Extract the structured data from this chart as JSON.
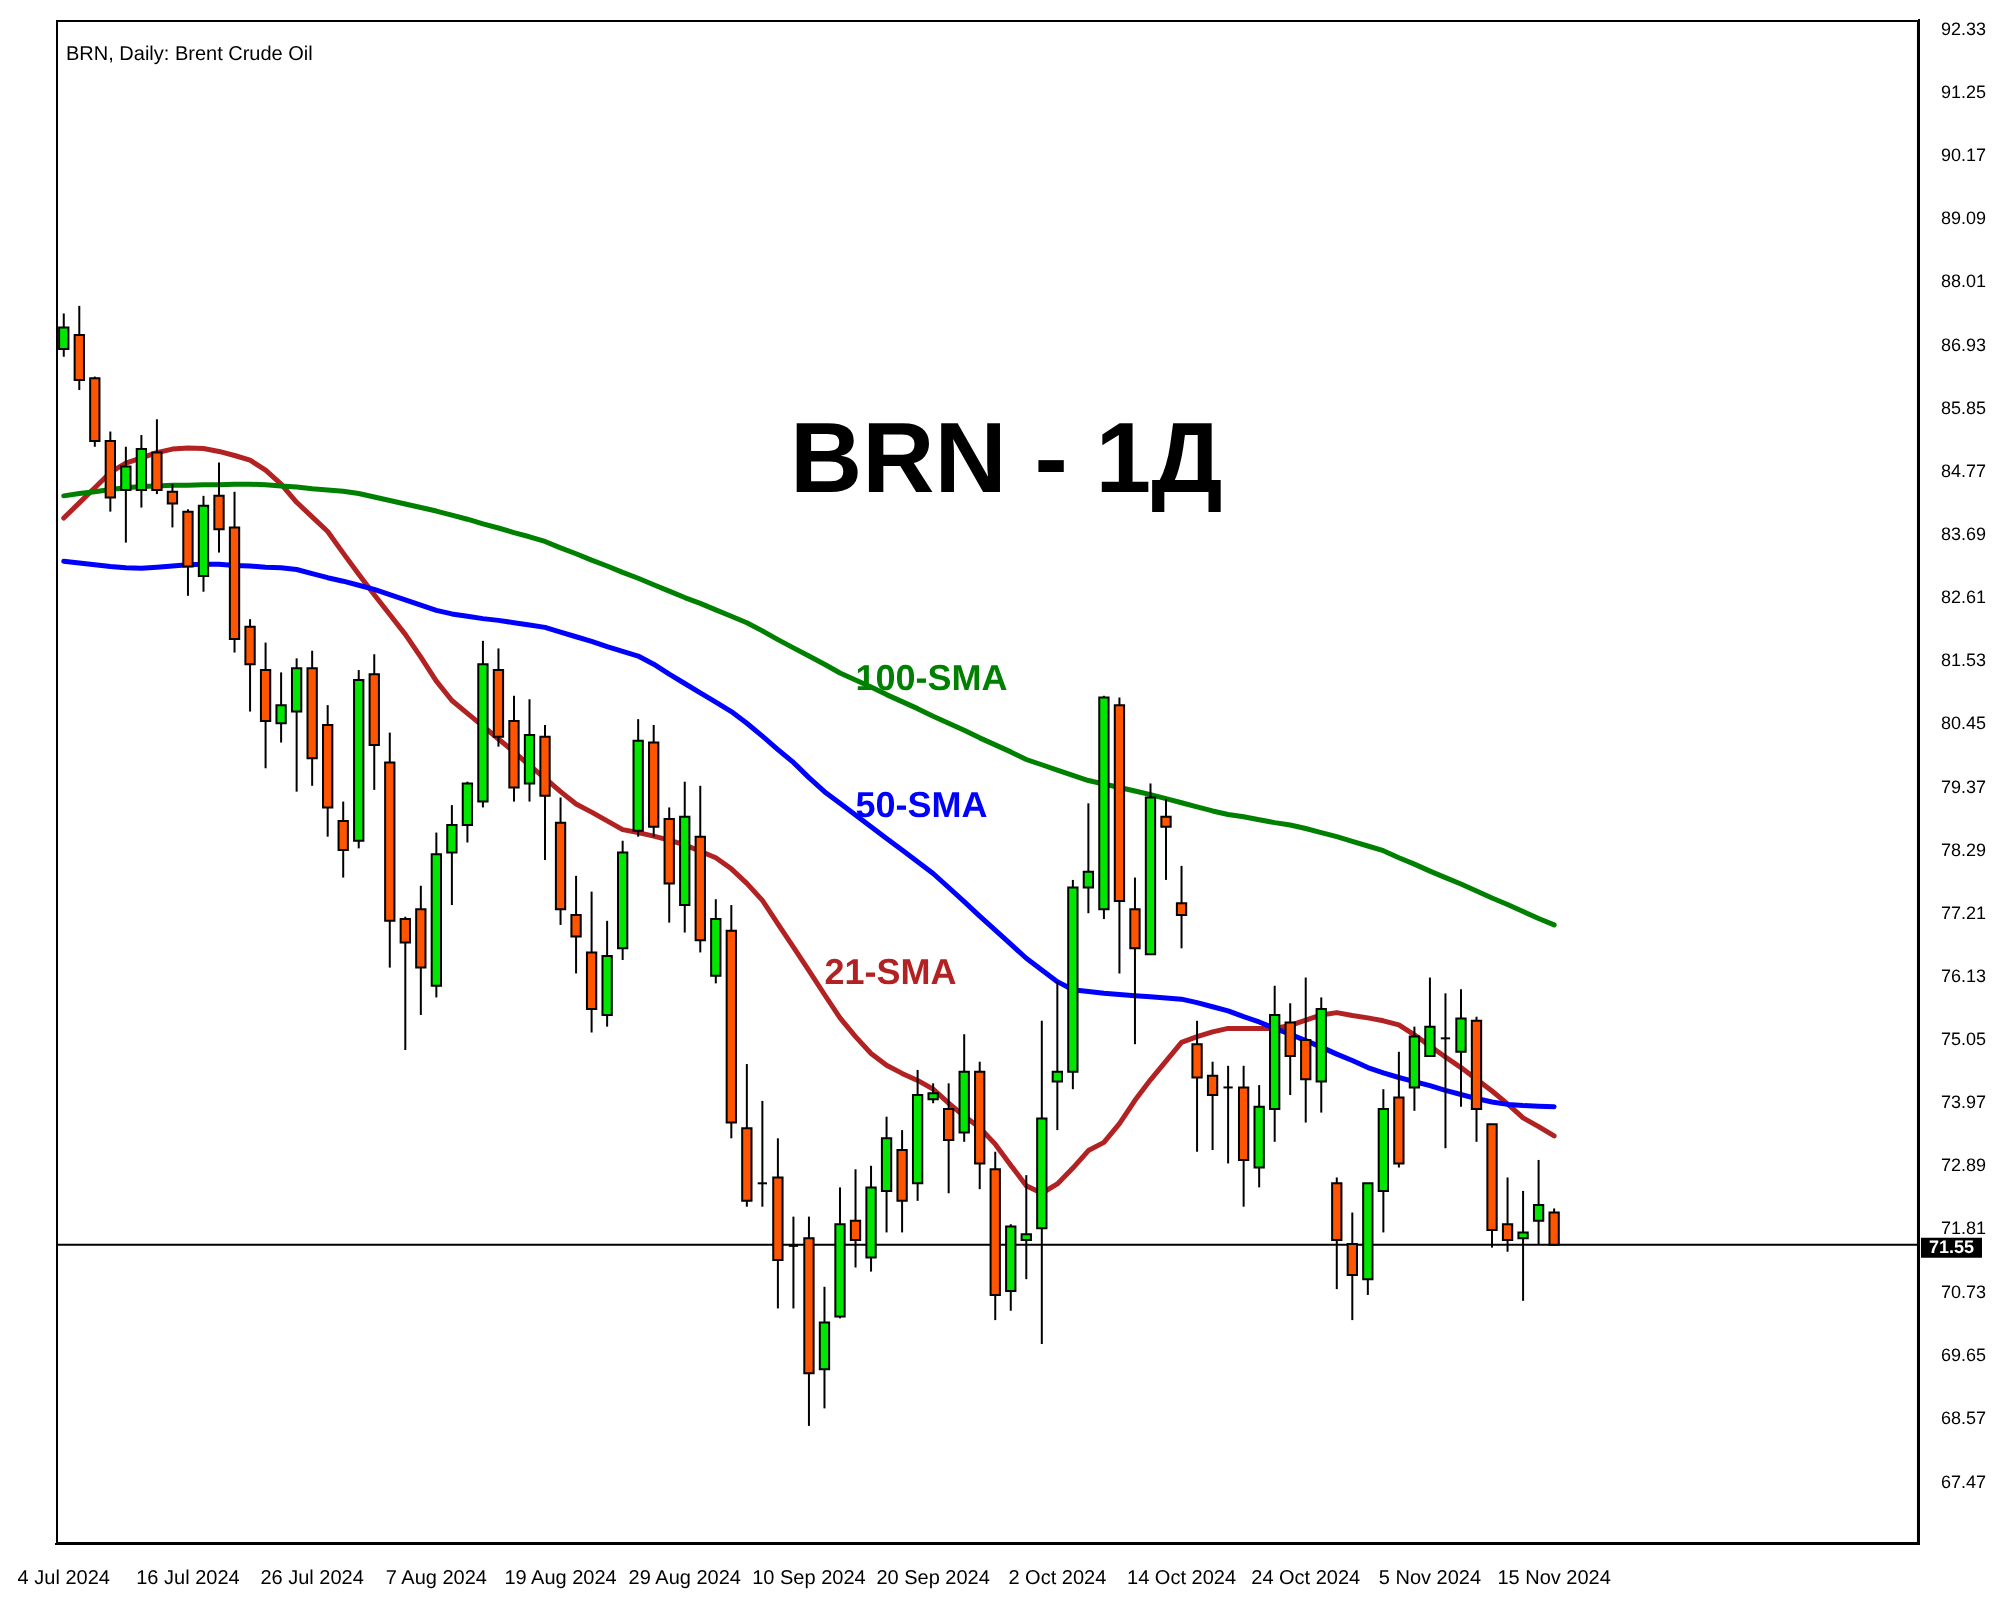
{
  "chart_data": {
    "type": "candlestick",
    "title": "BRN - 1Д",
    "subtitle": "BRN, Daily: Brent Crude Oil",
    "categories": [
      "4 Jul 2024",
      null,
      null,
      null,
      null,
      null,
      null,
      null,
      "16 Jul 2024",
      null,
      null,
      null,
      null,
      null,
      null,
      null,
      "26 Jul 2024",
      null,
      null,
      null,
      null,
      null,
      null,
      null,
      "7 Aug 2024",
      null,
      null,
      null,
      null,
      null,
      null,
      null,
      "19 Aug 2024",
      null,
      null,
      null,
      null,
      null,
      null,
      null,
      "29 Aug 2024",
      null,
      null,
      null,
      null,
      null,
      null,
      null,
      "10 Sep 2024",
      null,
      null,
      null,
      null,
      null,
      null,
      null,
      "20 Sep 2024",
      null,
      null,
      null,
      null,
      null,
      null,
      null,
      "2 Oct 2024",
      null,
      null,
      null,
      null,
      null,
      null,
      null,
      "14 Oct 2024",
      null,
      null,
      null,
      null,
      null,
      null,
      null,
      "24 Oct 2024",
      null,
      null,
      null,
      null,
      null,
      null,
      null,
      "5 Nov 2024",
      null,
      null,
      null,
      null,
      null,
      null,
      null,
      "15 Nov 2024"
    ],
    "ohlc": [
      [
        86.87,
        87.48,
        86.74,
        87.24
      ],
      [
        87.11,
        87.61,
        86.17,
        86.34
      ],
      [
        86.37,
        86.4,
        85.2,
        85.3
      ],
      [
        85.3,
        85.46,
        84.09,
        84.33
      ],
      [
        84.46,
        85.2,
        83.56,
        84.86
      ],
      [
        84.46,
        85.4,
        84.16,
        85.16
      ],
      [
        85.1,
        85.67,
        84.39,
        84.46
      ],
      [
        84.43,
        84.56,
        83.82,
        84.23
      ],
      [
        84.09,
        84.13,
        82.65,
        83.15
      ],
      [
        82.99,
        84.36,
        82.72,
        84.19
      ],
      [
        84.36,
        84.93,
        83.39,
        83.79
      ],
      [
        83.82,
        84.43,
        81.68,
        81.91
      ],
      [
        82.12,
        82.25,
        80.67,
        81.48
      ],
      [
        81.38,
        81.85,
        79.7,
        80.51
      ],
      [
        80.47,
        81.34,
        80.14,
        80.78
      ],
      [
        80.67,
        81.58,
        79.3,
        81.41
      ],
      [
        81.41,
        81.71,
        79.4,
        79.87
      ],
      [
        80.44,
        80.78,
        78.53,
        79.03
      ],
      [
        78.8,
        79.13,
        77.83,
        78.3
      ],
      [
        78.46,
        81.38,
        78.33,
        81.21
      ],
      [
        81.31,
        81.65,
        79.33,
        80.1
      ],
      [
        79.8,
        80.31,
        76.29,
        77.09
      ],
      [
        77.12,
        77.16,
        74.88,
        76.72
      ],
      [
        77.29,
        77.69,
        75.48,
        76.29
      ],
      [
        75.98,
        78.6,
        75.78,
        78.23
      ],
      [
        78.26,
        79.07,
        77.36,
        78.73
      ],
      [
        78.73,
        79.47,
        78.43,
        79.44
      ],
      [
        79.13,
        81.88,
        79.03,
        81.48
      ],
      [
        81.38,
        81.75,
        80.07,
        80.24
      ],
      [
        80.51,
        80.94,
        79.13,
        79.37
      ],
      [
        79.44,
        80.88,
        79.13,
        80.27
      ],
      [
        80.24,
        80.44,
        78.13,
        79.23
      ],
      [
        78.77,
        79.2,
        77.02,
        77.29
      ],
      [
        77.19,
        77.86,
        76.19,
        76.82
      ],
      [
        76.55,
        77.59,
        75.18,
        75.58
      ],
      [
        75.48,
        77.09,
        75.28,
        76.49
      ],
      [
        76.62,
        78.46,
        76.42,
        78.26
      ],
      [
        78.63,
        80.54,
        78.53,
        80.17
      ],
      [
        80.14,
        80.44,
        78.53,
        78.7
      ],
      [
        78.83,
        79.03,
        77.06,
        77.73
      ],
      [
        77.36,
        79.47,
        76.89,
        78.87
      ],
      [
        78.53,
        79.4,
        76.55,
        76.76
      ],
      [
        76.15,
        77.46,
        76.02,
        77.12
      ],
      [
        76.92,
        77.36,
        73.37,
        73.64
      ],
      [
        73.54,
        74.64,
        72.2,
        72.3
      ],
      [
        72.6,
        74.01,
        72.2,
        72.6
      ],
      [
        72.7,
        73.37,
        70.46,
        71.29
      ],
      [
        71.53,
        72.03,
        70.46,
        71.53
      ],
      [
        71.66,
        72.03,
        68.45,
        69.35
      ],
      [
        69.42,
        70.83,
        68.75,
        70.22
      ],
      [
        70.32,
        72.53,
        70.29,
        71.9
      ],
      [
        71.96,
        72.84,
        71.16,
        71.63
      ],
      [
        71.33,
        72.9,
        71.09,
        72.53
      ],
      [
        72.47,
        73.74,
        71.76,
        73.37
      ],
      [
        73.17,
        73.51,
        71.76,
        72.3
      ],
      [
        72.6,
        74.54,
        72.3,
        74.11
      ],
      [
        74.04,
        74.31,
        73.97,
        74.14
      ],
      [
        73.87,
        74.31,
        72.43,
        73.34
      ],
      [
        73.47,
        75.15,
        73.31,
        74.51
      ],
      [
        74.51,
        74.68,
        72.5,
        72.94
      ],
      [
        72.84,
        73.14,
        70.26,
        70.69
      ],
      [
        70.76,
        71.9,
        70.42,
        71.86
      ],
      [
        71.63,
        72.74,
        70.96,
        71.73
      ],
      [
        71.83,
        75.38,
        69.85,
        73.71
      ],
      [
        74.34,
        76.05,
        73.51,
        74.51
      ],
      [
        74.51,
        77.79,
        74.21,
        77.66
      ],
      [
        77.66,
        79.1,
        77.22,
        77.93
      ],
      [
        77.29,
        80.94,
        77.12,
        80.91
      ],
      [
        80.78,
        80.91,
        76.19,
        77.43
      ],
      [
        77.29,
        77.83,
        74.98,
        76.62
      ],
      [
        76.52,
        79.44,
        76.52,
        79.2
      ],
      [
        78.87,
        79.17,
        77.79,
        78.7
      ],
      [
        77.39,
        78.03,
        76.62,
        77.19
      ],
      [
        74.98,
        75.38,
        73.14,
        74.41
      ],
      [
        74.44,
        74.68,
        73.17,
        74.11
      ],
      [
        74.24,
        74.61,
        72.94,
        74.24
      ],
      [
        74.24,
        74.61,
        72.2,
        73.0
      ],
      [
        72.87,
        74.28,
        72.53,
        73.91
      ],
      [
        73.87,
        75.98,
        73.31,
        75.48
      ],
      [
        75.35,
        75.68,
        74.11,
        74.78
      ],
      [
        75.05,
        76.12,
        73.64,
        74.38
      ],
      [
        74.34,
        75.78,
        73.81,
        75.58
      ],
      [
        72.6,
        72.7,
        70.79,
        71.63
      ],
      [
        71.56,
        72.1,
        70.26,
        71.03
      ],
      [
        70.96,
        72.6,
        70.69,
        72.6
      ],
      [
        72.47,
        74.21,
        71.76,
        73.87
      ],
      [
        74.07,
        74.85,
        72.87,
        72.94
      ],
      [
        74.24,
        75.28,
        73.84,
        75.11
      ],
      [
        74.78,
        76.12,
        74.78,
        75.28
      ],
      [
        75.08,
        75.85,
        73.2,
        75.08
      ],
      [
        74.85,
        75.92,
        73.91,
        75.42
      ],
      [
        75.38,
        75.45,
        73.31,
        73.87
      ],
      [
        73.61,
        73.61,
        71.5,
        71.8
      ],
      [
        71.9,
        72.7,
        71.43,
        71.63
      ],
      [
        71.66,
        72.47,
        70.59,
        71.76
      ],
      [
        71.96,
        73.0,
        71.56,
        72.23
      ],
      [
        72.1,
        72.17,
        71.53,
        71.55
      ]
    ],
    "colors": [
      "#00e600",
      "#ff5500",
      "#ff5500",
      "#ff5500",
      "#00e600",
      "#00e600",
      "#ff5500",
      "#ff5500",
      "#ff5500",
      "#00e600",
      "#ff5500",
      "#ff5500",
      "#ff5500",
      "#ff5500",
      "#00e600",
      "#00e600",
      "#ff5500",
      "#ff5500",
      "#ff5500",
      "#00e600",
      "#ff5500",
      "#ff5500",
      "#ff5500",
      "#ff5500",
      "#00e600",
      "#00e600",
      "#00e600",
      "#00e600",
      "#ff5500",
      "#ff5500",
      "#00e600",
      "#ff5500",
      "#ff5500",
      "#ff5500",
      "#ff5500",
      "#00e600",
      "#00e600",
      "#00e600",
      "#ff5500",
      "#ff5500",
      "#00e600",
      "#ff5500",
      "#00e600",
      "#ff5500",
      "#ff5500",
      "#000000",
      "#ff5500",
      "#000000",
      "#ff5500",
      "#00e600",
      "#00e600",
      "#ff5500",
      "#00e600",
      "#00e600",
      "#ff5500",
      "#00e600",
      "#00e600",
      "#ff5500",
      "#00e600",
      "#ff5500",
      "#ff5500",
      "#00e600",
      "#00e600",
      "#00e600",
      "#00e600",
      "#00e600",
      "#00e600",
      "#00e600",
      "#ff5500",
      "#ff5500",
      "#00e600",
      "#ff5500",
      "#ff5500",
      "#ff5500",
      "#ff5500",
      "#000000",
      "#ff5500",
      "#00e600",
      "#00e600",
      "#ff5500",
      "#ff5500",
      "#00e600",
      "#ff5500",
      "#ff5500",
      "#00e600",
      "#00e600",
      "#ff5500",
      "#00e600",
      "#00e600",
      "#000000",
      "#00e600",
      "#ff5500",
      "#ff5500",
      "#ff5500",
      "#00e600",
      "#00e600",
      "#ff5500"
    ],
    "series": [
      {
        "type": "line",
        "name": "100-SMA",
        "color": "#008000",
        "values": [
          84.36,
          84.4,
          84.43,
          84.47,
          84.5,
          84.52,
          84.53,
          84.54,
          84.54,
          84.55,
          84.55,
          84.56,
          84.56,
          84.55,
          84.53,
          84.51,
          84.48,
          84.46,
          84.44,
          84.4,
          84.34,
          84.28,
          84.22,
          84.16,
          84.1,
          84.03,
          83.96,
          83.88,
          83.81,
          83.73,
          83.66,
          83.58,
          83.47,
          83.37,
          83.26,
          83.16,
          83.05,
          82.95,
          82.84,
          82.73,
          82.62,
          82.52,
          82.41,
          82.3,
          82.19,
          82.05,
          81.9,
          81.76,
          81.62,
          81.48,
          81.33,
          81.21,
          81.09,
          80.96,
          80.84,
          80.72,
          80.59,
          80.47,
          80.35,
          80.22,
          80.1,
          79.98,
          79.85,
          79.76,
          79.67,
          79.58,
          79.49,
          79.43,
          79.37,
          79.31,
          79.25,
          79.18,
          79.11,
          79.04,
          78.97,
          78.91,
          78.87,
          78.82,
          78.77,
          78.73,
          78.67,
          78.6,
          78.53,
          78.45,
          78.37,
          78.29,
          78.17,
          78.06,
          77.94,
          77.83,
          77.72,
          77.6,
          77.48,
          77.37,
          77.25,
          77.13,
          77.02
        ]
      },
      {
        "type": "line",
        "name": "50-SMA",
        "color": "#0000ff",
        "values": [
          83.24,
          83.21,
          83.18,
          83.15,
          83.13,
          83.12,
          83.14,
          83.16,
          83.18,
          83.19,
          83.19,
          83.17,
          83.16,
          83.14,
          83.13,
          83.1,
          83.03,
          82.96,
          82.9,
          82.83,
          82.76,
          82.67,
          82.58,
          82.49,
          82.4,
          82.34,
          82.3,
          82.26,
          82.23,
          82.19,
          82.15,
          82.11,
          82.03,
          81.95,
          81.87,
          81.78,
          81.7,
          81.62,
          81.48,
          81.31,
          81.15,
          80.99,
          80.83,
          80.67,
          80.47,
          80.25,
          80.02,
          79.8,
          79.54,
          79.3,
          79.1,
          78.9,
          78.7,
          78.5,
          78.3,
          78.1,
          77.9,
          77.66,
          77.42,
          77.17,
          76.93,
          76.69,
          76.45,
          76.25,
          76.05,
          75.91,
          75.88,
          75.85,
          75.83,
          75.81,
          75.79,
          75.77,
          75.75,
          75.69,
          75.62,
          75.55,
          75.45,
          75.36,
          75.25,
          75.15,
          75.04,
          74.93,
          74.81,
          74.7,
          74.58,
          74.49,
          74.41,
          74.34,
          74.27,
          74.19,
          74.12,
          74.05,
          73.99,
          73.95,
          73.93,
          73.92,
          73.91
        ]
      },
      {
        "type": "line",
        "name": "21-SMA",
        "color": "#b22222",
        "values": [
          83.98,
          84.24,
          84.5,
          84.76,
          84.92,
          85.01,
          85.1,
          85.16,
          85.18,
          85.17,
          85.12,
          85.05,
          84.97,
          84.8,
          84.56,
          84.25,
          84.0,
          83.75,
          83.38,
          83.02,
          82.67,
          82.33,
          81.99,
          81.6,
          81.19,
          80.86,
          80.64,
          80.42,
          80.2,
          79.98,
          79.75,
          79.53,
          79.3,
          79.09,
          78.95,
          78.8,
          78.65,
          78.6,
          78.54,
          78.47,
          78.39,
          78.28,
          78.17,
          77.98,
          77.73,
          77.44,
          77.04,
          76.64,
          76.24,
          75.83,
          75.43,
          75.11,
          74.82,
          74.62,
          74.48,
          74.36,
          74.21,
          73.97,
          73.75,
          73.55,
          73.27,
          72.91,
          72.56,
          72.43,
          72.59,
          72.86,
          73.16,
          73.3,
          73.62,
          74.02,
          74.37,
          74.69,
          75.01,
          75.11,
          75.19,
          75.25,
          75.25,
          75.25,
          75.25,
          75.3,
          75.39,
          75.48,
          75.52,
          75.47,
          75.43,
          75.38,
          75.31,
          75.14,
          74.95,
          74.76,
          74.58,
          74.38,
          74.18,
          73.96,
          73.72,
          73.57,
          73.41
        ]
      }
    ],
    "ylim": [
      66.43,
      92.5
    ],
    "yticks": [
      92.33,
      91.25,
      90.17,
      89.09,
      88.01,
      86.93,
      85.85,
      84.77,
      83.69,
      82.61,
      81.53,
      80.45,
      79.37,
      78.29,
      77.21,
      76.13,
      75.05,
      73.97,
      72.89,
      71.81,
      70.73,
      69.65,
      68.57,
      67.47
    ],
    "ref_lines": [
      {
        "axis": "y",
        "value": 71.55,
        "label": "71.55",
        "color": "#000000"
      }
    ],
    "grid": false,
    "legend": false,
    "marker": "none"
  }
}
